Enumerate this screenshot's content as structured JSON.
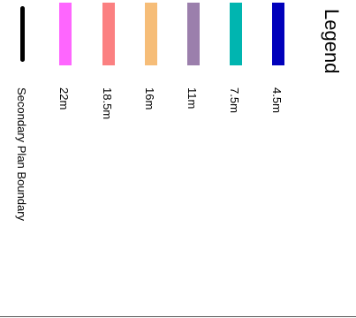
{
  "legend": {
    "title": "Legend",
    "items": [
      {
        "label": "4.5m",
        "color": "#0000bb",
        "type": "height-band"
      },
      {
        "label": "7.5m",
        "color": "#00b5b0",
        "type": "height-band"
      },
      {
        "label": "11m",
        "color": "#9b7fac",
        "type": "height-band"
      },
      {
        "label": "16m",
        "color": "#f6bd78",
        "type": "height-band"
      },
      {
        "label": "18.5m",
        "color": "#fb8081",
        "type": "height-band"
      },
      {
        "label": "22m",
        "color": "#fe66fe",
        "type": "height-band"
      },
      {
        "label": "Secondary Plan Boundary",
        "color": "#000000",
        "type": "boundary-line"
      }
    ]
  }
}
